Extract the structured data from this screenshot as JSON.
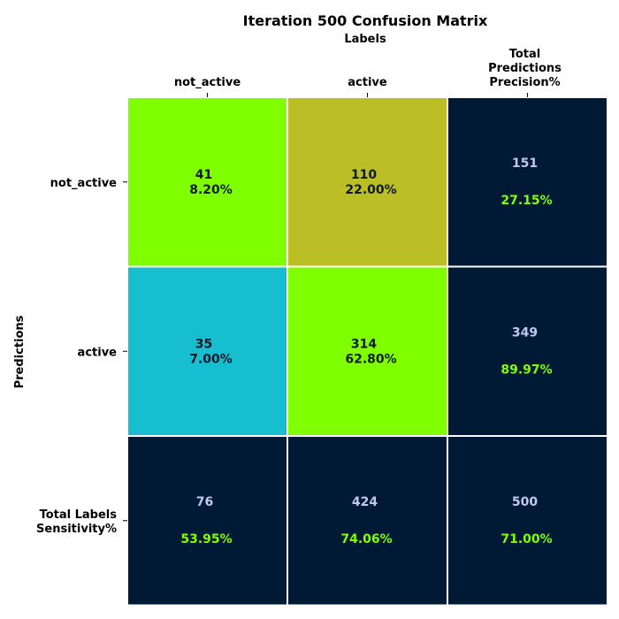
{
  "chart_data": {
    "type": "heatmap",
    "title": "Iteration 500 Confusion Matrix",
    "xlabel": "Labels",
    "ylabel": "Predictions",
    "columns": [
      "not_active",
      "active",
      "Total\nPredictions\nPrecision%"
    ],
    "rows": [
      "not_active",
      "active",
      "Total Labels\nSensitivity%"
    ],
    "cells": [
      [
        {
          "count": "41",
          "percent": "8.20%",
          "color": "#7fff00"
        },
        {
          "count": "110",
          "percent": "22.00%",
          "color": "#bbbe24"
        },
        {
          "count": "151",
          "percent": "27.15%",
          "color": "#001a36",
          "total": true
        }
      ],
      [
        {
          "count": "35",
          "percent": "7.00%",
          "color": "#17becf"
        },
        {
          "count": "314",
          "percent": "62.80%",
          "color": "#7fff00"
        },
        {
          "count": "349",
          "percent": "89.97%",
          "color": "#001a36",
          "total": true
        }
      ],
      [
        {
          "count": "76",
          "percent": "53.95%",
          "color": "#001a36",
          "total": true
        },
        {
          "count": "424",
          "percent": "74.06%",
          "color": "#001a36",
          "total": true
        },
        {
          "count": "500",
          "percent": "71.00%",
          "color": "#001a36",
          "total": true
        }
      ]
    ],
    "colors": {
      "total_count_text": "#c0c8f0",
      "total_percent_text": "#7fff00",
      "cell_text": "#0c1a2a",
      "grid_line": "#ffffff"
    }
  }
}
